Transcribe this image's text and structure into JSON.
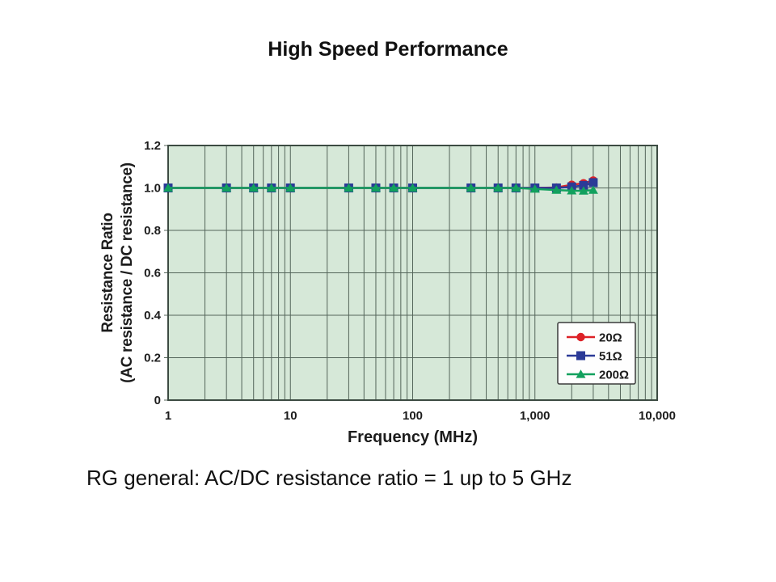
{
  "slide": {
    "title": "High Speed Performance",
    "caption": "RG general: AC/DC resistance ratio = 1 up to 5 GHz"
  },
  "chart_data": {
    "type": "line",
    "x_scale": "log",
    "xlabel": "Frequency (MHz)",
    "ylabel_line1": "Resistance Ratio",
    "ylabel_line2": "(AC resistance / DC resistance)",
    "xlim": [
      1,
      10000
    ],
    "ylim": [
      0,
      1.2
    ],
    "grid": true,
    "legend_position": "lower-right",
    "x": [
      1,
      3,
      5,
      7,
      10,
      30,
      50,
      70,
      100,
      300,
      500,
      700,
      1000,
      1500,
      2000,
      2500,
      3000
    ],
    "series": [
      {
        "name": "20Ω",
        "marker": "circle",
        "color": "#dd2127",
        "values": [
          1,
          1,
          1,
          1,
          1,
          1,
          1,
          1,
          1,
          1,
          1,
          1,
          1,
          1.002,
          1.015,
          1.022,
          1.035
        ]
      },
      {
        "name": "51Ω",
        "marker": "square",
        "color": "#2b3a97",
        "values": [
          1,
          1,
          1,
          1,
          1,
          1,
          1,
          1,
          1,
          1,
          1,
          1,
          1,
          1.0,
          1.005,
          1.012,
          1.025
        ]
      },
      {
        "name": "200Ω",
        "marker": "triangle",
        "color": "#12a15e",
        "values": [
          1,
          1,
          1,
          1,
          1,
          1,
          1,
          1,
          1,
          1,
          1,
          1,
          0.995,
          0.99,
          0.987,
          0.986,
          0.99
        ]
      }
    ],
    "x_ticks": [
      {
        "value": 1,
        "label": "1"
      },
      {
        "value": 10,
        "label": "10"
      },
      {
        "value": 100,
        "label": "100"
      },
      {
        "value": 1000,
        "label": "1,000"
      },
      {
        "value": 10000,
        "label": "10,000"
      }
    ],
    "y_ticks": [
      {
        "value": 0,
        "label": "0"
      },
      {
        "value": 0.2,
        "label": "0.2"
      },
      {
        "value": 0.4,
        "label": "0.4"
      },
      {
        "value": 0.6,
        "label": "0.6"
      },
      {
        "value": 0.8,
        "label": "0.8"
      },
      {
        "value": 1.0,
        "label": "1.0"
      },
      {
        "value": 1.2,
        "label": "1.2"
      }
    ],
    "colors": {
      "plot_background": "#d6e8d8",
      "gridline": "#54655a",
      "plot_border": "#3c4b42",
      "text": "#1c1c1c",
      "legend_background": "#fefefe",
      "legend_border": "#3a3a3a"
    }
  }
}
